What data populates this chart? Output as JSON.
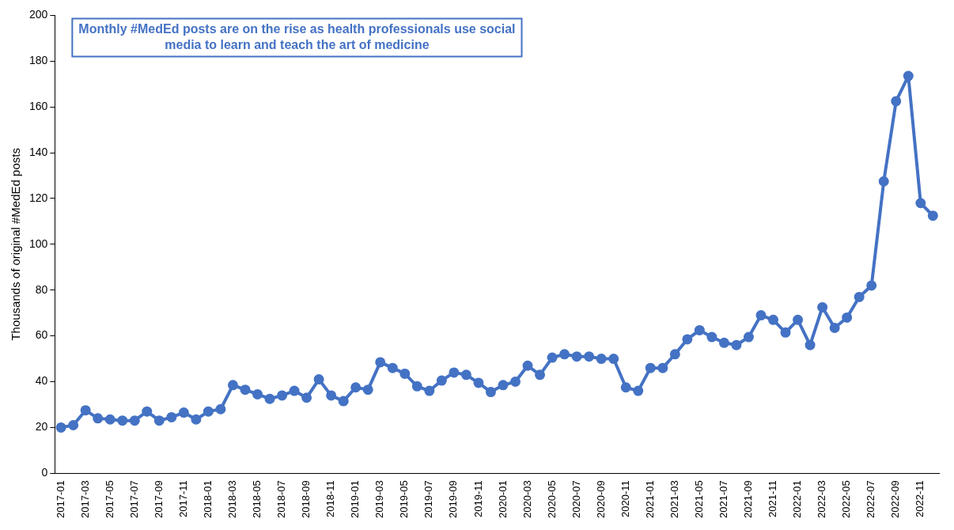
{
  "chart_data": {
    "type": "line",
    "title": "Monthly #MedEd posts are on the rise as health professionals use social media to learn and teach the art of medicine",
    "ylabel": "Thousands of original #MedEd posts",
    "categories": [
      "2017-01",
      null,
      "2017-03",
      null,
      "2017-05",
      null,
      "2017-07",
      null,
      "2017-09",
      null,
      "2017-11",
      null,
      "2018-01",
      null,
      "2018-03",
      null,
      "2018-05",
      null,
      "2018-07",
      null,
      "2018-09",
      null,
      "2018-11",
      null,
      "2019-01",
      null,
      "2019-03",
      null,
      "2019-05",
      null,
      "2019-07",
      null,
      "2019-09",
      null,
      "2019-11",
      null,
      "2020-01",
      null,
      "2020-03",
      null,
      "2020-05",
      null,
      "2020-07",
      null,
      "2020-09",
      null,
      "2020-11",
      null,
      "2021-01",
      null,
      "2021-03",
      null,
      "2021-05",
      null,
      "2021-07",
      null,
      "2021-09",
      null,
      "2021-11",
      null,
      "2022-01",
      null,
      "2022-03",
      null,
      "2022-05",
      null,
      "2022-07",
      null,
      "2022-09",
      null,
      "2022-11",
      null
    ],
    "series": [
      {
        "color": "#4472c4",
        "values": [
          20,
          21,
          27.5,
          24,
          23.5,
          23,
          23,
          27,
          23,
          24.5,
          26.5,
          23.5,
          27,
          28,
          38.5,
          36.5,
          34.5,
          32.5,
          34,
          36,
          33,
          41,
          34,
          31.5,
          37.5,
          36.5,
          48.5,
          46,
          43.5,
          38,
          36,
          40.5,
          44,
          43,
          39.5,
          35.5,
          38.5,
          40,
          47,
          43,
          50.5,
          52,
          51,
          51,
          50,
          50,
          37.5,
          36,
          46,
          46,
          52,
          58.5,
          62.5,
          59.5,
          57,
          56,
          59.5,
          69,
          67,
          61.5,
          67,
          56,
          72.5,
          63.5,
          68,
          77,
          82,
          127.5,
          162.5,
          173.5,
          118,
          112.5
        ]
      }
    ],
    "ylim": [
      0,
      200
    ],
    "yticks": [
      0,
      20,
      40,
      60,
      80,
      100,
      120,
      140,
      160,
      180,
      200
    ],
    "grid": false,
    "legend": false,
    "marker": "circle",
    "line_style": "solid"
  }
}
